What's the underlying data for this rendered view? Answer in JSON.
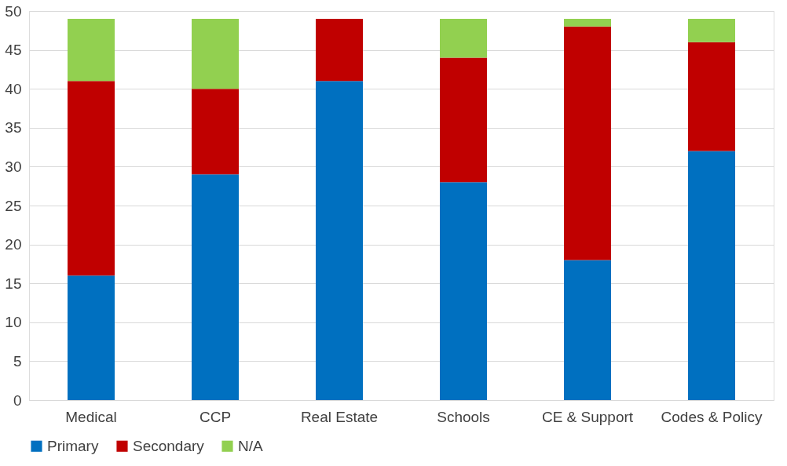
{
  "chart_data": {
    "type": "bar",
    "stacked": true,
    "categories": [
      "Medical",
      "CCP",
      "Real Estate",
      "Schools",
      "CE & Support",
      "Codes & Policy"
    ],
    "series": [
      {
        "name": "Primary",
        "color": "#0070c0",
        "values": [
          16,
          29,
          41,
          28,
          18,
          32
        ]
      },
      {
        "name": "Secondary",
        "color": "#c00000",
        "values": [
          25,
          11,
          8,
          16,
          30,
          14
        ]
      },
      {
        "name": "N/A",
        "color": "#92d050",
        "values": [
          8,
          9,
          0,
          5,
          1,
          3
        ]
      }
    ],
    "ylim": [
      0,
      50
    ],
    "yticks": [
      0,
      5,
      10,
      15,
      20,
      25,
      30,
      35,
      40,
      45,
      50
    ],
    "grid": "y",
    "legend": "bottom"
  }
}
